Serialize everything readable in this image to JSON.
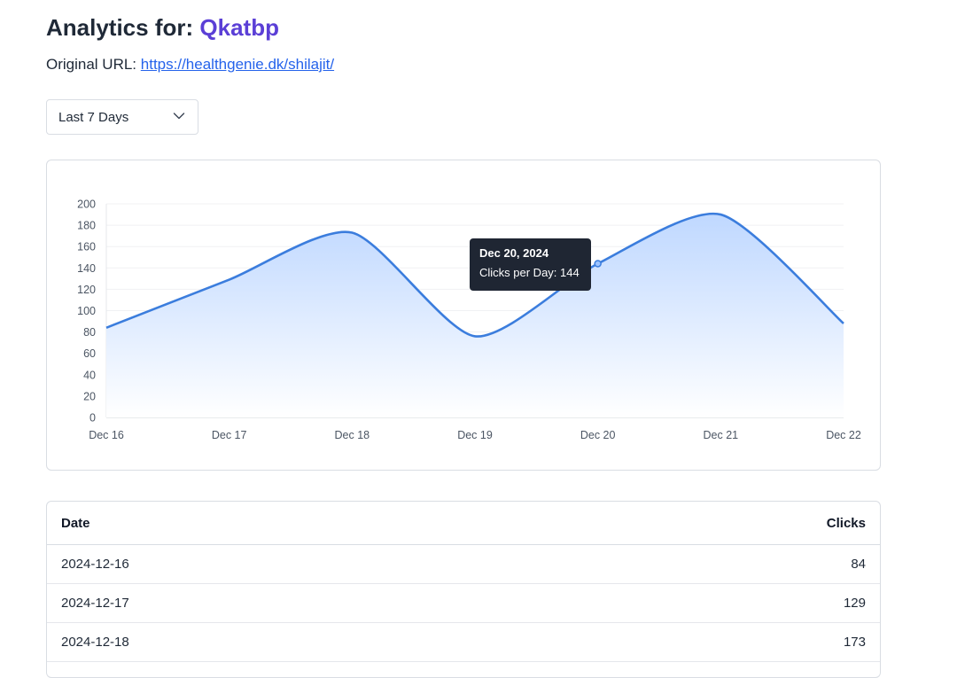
{
  "header": {
    "title_prefix": "Analytics for:",
    "short_code": "Qkatbp",
    "url_label": "Original URL:",
    "url": "https://healthgenie.dk/shilajit/"
  },
  "range_select": {
    "selected": "Last 7 Days",
    "icon": "chevron-down-icon"
  },
  "colors": {
    "line": "#3b7ddd",
    "fill_top": "#bcd6ff",
    "accent": "#5b3fd6",
    "link": "#2563eb"
  },
  "tooltip": {
    "title": "Dec 20, 2024",
    "label": "Clicks per Day",
    "value": 144,
    "text": "Clicks per Day: 144"
  },
  "chart_data": {
    "type": "area",
    "categories": [
      "Dec 16",
      "Dec 17",
      "Dec 18",
      "Dec 19",
      "Dec 20",
      "Dec 21",
      "Dec 22"
    ],
    "series": [
      {
        "name": "Clicks per Day",
        "values": [
          84,
          129,
          173,
          76,
          144,
          190,
          88
        ]
      }
    ],
    "ylim": [
      0,
      200
    ],
    "yticks": [
      0,
      20,
      40,
      60,
      80,
      100,
      120,
      140,
      160,
      180,
      200
    ],
    "grid": true
  },
  "table": {
    "headers": {
      "date": "Date",
      "clicks": "Clicks"
    },
    "rows": [
      {
        "date": "2024-12-16",
        "clicks": "84"
      },
      {
        "date": "2024-12-17",
        "clicks": "129"
      },
      {
        "date": "2024-12-18",
        "clicks": "173"
      }
    ]
  }
}
